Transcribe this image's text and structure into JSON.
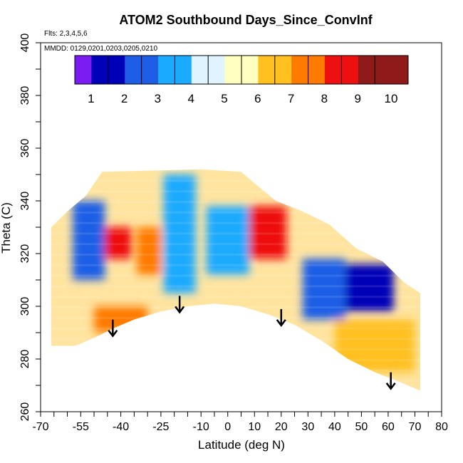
{
  "chart_data": {
    "type": "heatmap",
    "title": "ATOM2 Southbound Days_Since_ConvInf",
    "flights_note": "Flts: 2,3,4,5,6",
    "dates_note": "MMDD: 0129,0201,0203,0205,0210",
    "xlabel": "Latitude (deg N)",
    "ylabel": "Theta (C)",
    "xlim": [
      -70,
      80
    ],
    "ylim": [
      260,
      400
    ],
    "x_ticks": [
      -70,
      -55,
      -40,
      -25,
      -10,
      0,
      10,
      20,
      30,
      40,
      50,
      60,
      70,
      80
    ],
    "y_ticks": [
      260,
      280,
      300,
      320,
      340,
      360,
      380,
      400
    ],
    "colorbar": {
      "min": 0,
      "max": 10,
      "ticks": [
        1,
        2,
        3,
        4,
        5,
        6,
        7,
        8,
        9,
        10
      ],
      "colors": [
        "#7a1cf2",
        "#0000b8",
        "#1e5ee6",
        "#1aaaff",
        "#e0f4ff",
        "#ffffc0",
        "#ffc020",
        "#ff7a00",
        "#ee1010",
        "#8e1a1a"
      ]
    },
    "lower_boundary": [
      {
        "lat": -57,
        "theta": 285
      },
      {
        "lat": -50,
        "theta": 288
      },
      {
        "lat": -42,
        "theta": 292
      },
      {
        "lat": -35,
        "theta": 295
      },
      {
        "lat": -25,
        "theta": 298
      },
      {
        "lat": -15,
        "theta": 300
      },
      {
        "lat": -5,
        "theta": 301
      },
      {
        "lat": 5,
        "theta": 300
      },
      {
        "lat": 15,
        "theta": 297
      },
      {
        "lat": 25,
        "theta": 293
      },
      {
        "lat": 35,
        "theta": 287
      },
      {
        "lat": 45,
        "theta": 280
      },
      {
        "lat": 55,
        "theta": 275
      },
      {
        "lat": 65,
        "theta": 271
      },
      {
        "lat": 72,
        "theta": 268
      }
    ],
    "upper_boundary": [
      {
        "lat": -66,
        "theta": 330
      },
      {
        "lat": -60,
        "theta": 336
      },
      {
        "lat": -53,
        "theta": 342
      },
      {
        "lat": -47,
        "theta": 351
      },
      {
        "lat": -10,
        "theta": 352
      },
      {
        "lat": 5,
        "theta": 351
      },
      {
        "lat": 12,
        "theta": 345
      },
      {
        "lat": 18,
        "theta": 340
      },
      {
        "lat": 28,
        "theta": 336
      },
      {
        "lat": 38,
        "theta": 331
      },
      {
        "lat": 48,
        "theta": 322
      },
      {
        "lat": 58,
        "theta": 317
      },
      {
        "lat": 66,
        "theta": 309
      },
      {
        "lat": 72,
        "theta": 305
      }
    ],
    "regions": [
      {
        "lat_range": [
          -58,
          -46
        ],
        "theta_range": [
          310,
          340
        ],
        "value": 2
      },
      {
        "lat_range": [
          -46,
          -36
        ],
        "theta_range": [
          318,
          330
        ],
        "value": 8
      },
      {
        "lat_range": [
          -34,
          -25
        ],
        "theta_range": [
          312,
          330
        ],
        "value": 7
      },
      {
        "lat_range": [
          -24,
          -12
        ],
        "theta_range": [
          305,
          350
        ],
        "value": 3
      },
      {
        "lat_range": [
          -8,
          8
        ],
        "theta_range": [
          312,
          338
        ],
        "value": 3
      },
      {
        "lat_range": [
          8,
          22
        ],
        "theta_range": [
          318,
          338
        ],
        "value": 8
      },
      {
        "lat_range": [
          28,
          44
        ],
        "theta_range": [
          295,
          318
        ],
        "value": 2
      },
      {
        "lat_range": [
          44,
          62
        ],
        "theta_range": [
          298,
          316
        ],
        "value": 1
      },
      {
        "lat_range": [
          -50,
          -30
        ],
        "theta_range": [
          290,
          300
        ],
        "value": 7
      },
      {
        "lat_range": [
          40,
          70
        ],
        "theta_range": [
          275,
          295
        ],
        "value": 6
      }
    ],
    "arrows": [
      {
        "lat": -43,
        "theta": 289
      },
      {
        "lat": -18,
        "theta": 298
      },
      {
        "lat": 20,
        "theta": 293
      },
      {
        "lat": 61,
        "theta": 269
      }
    ]
  }
}
